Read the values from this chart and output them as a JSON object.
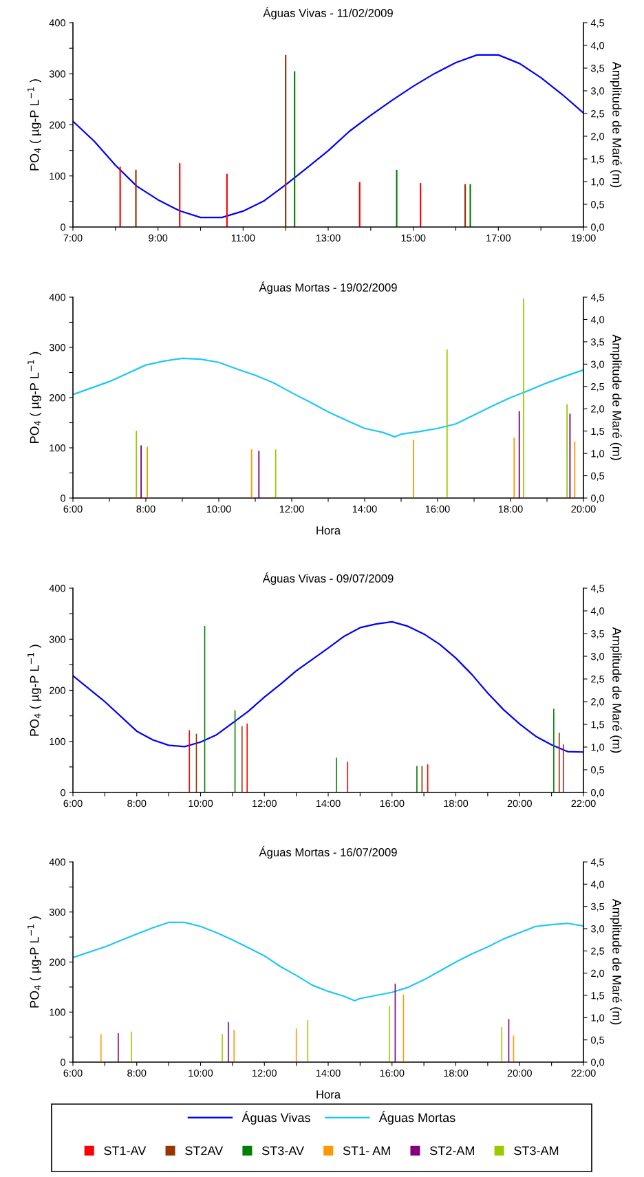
{
  "chart_data": [
    {
      "type": "bar",
      "title": "Águas Vivas - 11/02/2009",
      "ylabel": "PO$_{4}$ ( µg-P L$^{−1}$ )",
      "y2label": "Amplitude de Maré (m)",
      "legend": "bottom",
      "xlim": [
        7,
        19
      ],
      "xticks": [
        {
          "value": 7,
          "label": "7:00"
        },
        {
          "value": 8,
          "label": null
        },
        {
          "value": 9,
          "label": "9:00"
        },
        {
          "value": 10,
          "label": null
        },
        {
          "value": 11,
          "label": "11:00"
        },
        {
          "value": 12,
          "label": null
        },
        {
          "value": 13,
          "label": "13:00"
        },
        {
          "value": 14,
          "label": null
        },
        {
          "value": 15,
          "label": "15:00"
        },
        {
          "value": 16,
          "label": null
        },
        {
          "value": 17,
          "label": "17:00"
        },
        {
          "value": 18,
          "label": null
        },
        {
          "value": 19,
          "label": "19:00"
        }
      ],
      "ylim": [
        0,
        400
      ],
      "yticks": [
        0,
        {
          "value": 50,
          "label": null
        },
        100,
        {
          "value": 150,
          "label": null
        },
        200,
        {
          "value": 250,
          "label": null
        },
        300,
        {
          "value": 350,
          "label": null
        },
        400
      ],
      "y2lim": [
        0,
        4.5
      ],
      "y2ticks": [
        {
          "value": 0,
          "label": "0,0"
        },
        {
          "value": 0.5,
          "label": "0,5"
        },
        {
          "value": 1,
          "label": "1,0"
        },
        {
          "value": 1.5,
          "label": "1,5"
        },
        {
          "value": 2,
          "label": "2,0"
        },
        {
          "value": 2.5,
          "label": "2,5"
        },
        {
          "value": 3,
          "label": "3,0"
        },
        {
          "value": 3.5,
          "label": "3,5"
        },
        {
          "value": 4,
          "label": "4,0"
        },
        {
          "value": 4.5,
          "label": "4,5"
        }
      ],
      "series": [
        {
          "name": "Águas Vivas",
          "type": "line",
          "axis": "y2",
          "color": "#0000ff",
          "x": [
            7,
            7.5,
            8,
            8.5,
            9,
            9.5,
            10,
            10.5,
            11,
            11.5,
            12,
            12.5,
            13,
            13.5,
            14,
            14.5,
            15,
            15.5,
            16,
            16.5,
            17,
            17.5,
            18,
            18.5,
            19
          ],
          "values": [
            2.33,
            1.89,
            1.36,
            0.9,
            0.6,
            0.36,
            0.21,
            0.21,
            0.35,
            0.58,
            0.93,
            1.3,
            1.68,
            2.11,
            2.46,
            2.79,
            3.1,
            3.38,
            3.62,
            3.79,
            3.79,
            3.6,
            3.29,
            2.92,
            2.51
          ]
        },
        {
          "name": "ST1-AV",
          "color": "#ff0000",
          "x": [
            8.11,
            9.51,
            10.62,
            13.74,
            15.17
          ],
          "values": [
            118,
            125,
            104,
            88,
            86
          ]
        },
        {
          "name": "ST2AV",
          "color": "#993300",
          "x": [
            8.48,
            12.0,
            16.22
          ],
          "values": [
            112,
            337,
            84
          ]
        },
        {
          "name": "ST3-AV",
          "color": "#008000",
          "x": [
            12.21,
            14.61,
            16.34
          ],
          "values": [
            305,
            112,
            84
          ]
        }
      ]
    },
    {
      "type": "bar",
      "title": "Águas Mortas - 19/02/2009",
      "xlabel": "Hora",
      "ylabel": "PO$_{4}$ ( µg-P L$^{−1}$ )",
      "y2label": "Amplitude de Maré (m)",
      "legend": "bottom",
      "xlim": [
        6,
        20
      ],
      "xticks": [
        {
          "value": 6,
          "label": "6:00"
        },
        {
          "value": 7,
          "label": null
        },
        {
          "value": 8,
          "label": "8:00"
        },
        {
          "value": 9,
          "label": null
        },
        {
          "value": 10,
          "label": "10:00"
        },
        {
          "value": 11,
          "label": null
        },
        {
          "value": 12,
          "label": "12:00"
        },
        {
          "value": 13,
          "label": null
        },
        {
          "value": 14,
          "label": "14:00"
        },
        {
          "value": 15,
          "label": null
        },
        {
          "value": 16,
          "label": "16:00"
        },
        {
          "value": 17,
          "label": null
        },
        {
          "value": 18,
          "label": "18:00"
        },
        {
          "value": 19,
          "label": null
        },
        {
          "value": 20,
          "label": "20:00"
        }
      ],
      "ylim": [
        0,
        400
      ],
      "yticks": [
        0,
        {
          "value": 50,
          "label": null
        },
        100,
        {
          "value": 150,
          "label": null
        },
        200,
        {
          "value": 250,
          "label": null
        },
        300,
        {
          "value": 350,
          "label": null
        },
        400
      ],
      "y2lim": [
        0,
        4.5
      ],
      "y2ticks": [
        {
          "value": 0,
          "label": "0,0"
        },
        {
          "value": 0.5,
          "label": "0,5"
        },
        {
          "value": 1,
          "label": "1,0"
        },
        {
          "value": 1.5,
          "label": "1,5"
        },
        {
          "value": 2,
          "label": "2,0"
        },
        {
          "value": 2.5,
          "label": "2,5"
        },
        {
          "value": 3,
          "label": "3,0"
        },
        {
          "value": 3.5,
          "label": "3,5"
        },
        {
          "value": 4,
          "label": "4,0"
        },
        {
          "value": 4.5,
          "label": "4,5"
        }
      ],
      "series": [
        {
          "name": "Águas Mortas",
          "type": "line",
          "axis": "y2",
          "color": "#1ec8f5",
          "x": [
            6,
            7,
            8,
            8.5,
            9,
            9.5,
            10,
            10.5,
            11,
            11.5,
            12,
            12.5,
            13,
            13.5,
            14,
            14.5,
            14.83,
            15,
            15.5,
            16,
            16.5,
            17,
            17.5,
            18,
            18.5,
            19,
            19.5,
            20
          ],
          "values": [
            2.32,
            2.61,
            2.98,
            3.07,
            3.13,
            3.11,
            3.04,
            2.89,
            2.75,
            2.58,
            2.36,
            2.15,
            1.93,
            1.74,
            1.56,
            1.47,
            1.37,
            1.43,
            1.49,
            1.56,
            1.66,
            1.86,
            2.06,
            2.25,
            2.41,
            2.58,
            2.73,
            2.87
          ]
        },
        {
          "name": "ST1- AM",
          "color": "#ff9900",
          "x": [
            8.04,
            10.9,
            15.34,
            18.1,
            19.76
          ],
          "values": [
            102,
            97,
            116,
            120,
            113
          ]
        },
        {
          "name": "ST2-AM",
          "color": "#800080",
          "x": [
            7.87,
            11.1,
            18.24,
            19.63
          ],
          "values": [
            105,
            94,
            173,
            168
          ]
        },
        {
          "name": "ST3-AM",
          "color": "#99cc00",
          "x": [
            7.74,
            11.56,
            16.26,
            18.36,
            19.55
          ],
          "values": [
            134,
            97,
            296,
            397,
            187
          ]
        }
      ]
    },
    {
      "type": "bar",
      "title": "Águas Vivas - 09/07/2009",
      "ylabel": "PO$_{4}$ ( µg-P L$^{−1}$ )",
      "y2label": "Amplitude de Maré (m)",
      "legend": "bottom",
      "xlim": [
        6,
        22
      ],
      "xticks": [
        {
          "value": 6,
          "label": "6:00"
        },
        {
          "value": 7,
          "label": null
        },
        {
          "value": 8,
          "label": "8:00"
        },
        {
          "value": 9,
          "label": null
        },
        {
          "value": 10,
          "label": "10:00"
        },
        {
          "value": 11,
          "label": null
        },
        {
          "value": 12,
          "label": "12:00"
        },
        {
          "value": 13,
          "label": null
        },
        {
          "value": 14,
          "label": "14:00"
        },
        {
          "value": 15,
          "label": null
        },
        {
          "value": 16,
          "label": "16:00"
        },
        {
          "value": 17,
          "label": null
        },
        {
          "value": 18,
          "label": "18:00"
        },
        {
          "value": 19,
          "label": null
        },
        {
          "value": 20,
          "label": "20:00"
        },
        {
          "value": 21,
          "label": null
        },
        {
          "value": 22,
          "label": "22:00"
        }
      ],
      "ylim": [
        0,
        400
      ],
      "yticks": [
        0,
        {
          "value": 50,
          "label": null
        },
        100,
        {
          "value": 150,
          "label": null
        },
        200,
        {
          "value": 250,
          "label": null
        },
        300,
        {
          "value": 350,
          "label": null
        },
        400
      ],
      "y2lim": [
        0,
        4.5
      ],
      "y2ticks": [
        {
          "value": 0,
          "label": "0,0"
        },
        {
          "value": 0.5,
          "label": "0,5"
        },
        {
          "value": 1,
          "label": "1,0"
        },
        {
          "value": 1.5,
          "label": "1,5"
        },
        {
          "value": 2,
          "label": "2,0"
        },
        {
          "value": 2.5,
          "label": "2,5"
        },
        {
          "value": 3,
          "label": "3,0"
        },
        {
          "value": 3.5,
          "label": "3,5"
        },
        {
          "value": 4,
          "label": "4,0"
        },
        {
          "value": 4.5,
          "label": "4,5"
        }
      ],
      "series": [
        {
          "name": "Águas Vivas",
          "type": "line",
          "axis": "y2",
          "color": "#0000ff",
          "x": [
            6,
            7,
            8,
            8.5,
            9,
            9.5,
            10,
            10.5,
            11,
            11.5,
            12,
            12.5,
            13,
            13.5,
            14,
            14.5,
            15,
            15.5,
            16,
            16.5,
            17,
            17.5,
            18,
            18.5,
            19,
            19.5,
            20,
            20.5,
            21,
            21.5,
            22
          ],
          "values": [
            2.57,
            2.0,
            1.35,
            1.16,
            1.04,
            1.01,
            1.11,
            1.27,
            1.53,
            1.79,
            2.1,
            2.38,
            2.68,
            2.93,
            3.18,
            3.44,
            3.63,
            3.71,
            3.76,
            3.66,
            3.49,
            3.26,
            2.96,
            2.6,
            2.19,
            1.82,
            1.51,
            1.24,
            1.05,
            0.9,
            0.89
          ]
        },
        {
          "name": "ST1-AV",
          "color": "#ff0000",
          "x": [
            9.65,
            11.46,
            14.61,
            17.12,
            21.37
          ],
          "values": [
            122,
            135,
            60,
            55,
            94
          ]
        },
        {
          "name": "ST2AV",
          "color": "#993300",
          "x": [
            9.87,
            11.3,
            16.94,
            21.24
          ],
          "values": [
            115,
            130,
            52,
            117
          ]
        },
        {
          "name": "ST3-AV",
          "color": "#008000",
          "x": [
            10.13,
            11.08,
            14.26,
            16.78,
            21.07
          ],
          "values": [
            326,
            161,
            68,
            52,
            164
          ]
        }
      ]
    },
    {
      "type": "bar",
      "title": "Águas Mortas - 16/07/2009",
      "xlabel": "Hora",
      "ylabel": "PO$_{4}$ ( µg-P L$^{−1}$ )",
      "y2label": "Amplitude de Maré (m)",
      "legend": "bottom",
      "xlim": [
        6,
        22
      ],
      "xticks": [
        {
          "value": 6,
          "label": "6:00"
        },
        {
          "value": 7,
          "label": null
        },
        {
          "value": 8,
          "label": "8:00"
        },
        {
          "value": 9,
          "label": null
        },
        {
          "value": 10,
          "label": "10:00"
        },
        {
          "value": 11,
          "label": null
        },
        {
          "value": 12,
          "label": "12:00"
        },
        {
          "value": 13,
          "label": null
        },
        {
          "value": 14,
          "label": "14:00"
        },
        {
          "value": 15,
          "label": null
        },
        {
          "value": 16,
          "label": "16:00"
        },
        {
          "value": 17,
          "label": null
        },
        {
          "value": 18,
          "label": "18:00"
        },
        {
          "value": 19,
          "label": null
        },
        {
          "value": 20,
          "label": "20:00"
        },
        {
          "value": 21,
          "label": null
        },
        {
          "value": 22,
          "label": "22:00"
        }
      ],
      "ylim": [
        0,
        400
      ],
      "yticks": [
        0,
        {
          "value": 50,
          "label": null
        },
        100,
        {
          "value": 150,
          "label": null
        },
        200,
        {
          "value": 250,
          "label": null
        },
        300,
        {
          "value": 350,
          "label": null
        },
        400
      ],
      "y2lim": [
        0,
        4.5
      ],
      "y2ticks": [
        {
          "value": 0,
          "label": "0,0"
        },
        {
          "value": 0.5,
          "label": "0,5"
        },
        {
          "value": 1,
          "label": "1,0"
        },
        {
          "value": 1.5,
          "label": "1,5"
        },
        {
          "value": 2,
          "label": "2,0"
        },
        {
          "value": 2.5,
          "label": "2,5"
        },
        {
          "value": 3,
          "label": "3,0"
        },
        {
          "value": 3.5,
          "label": "3,5"
        },
        {
          "value": 4,
          "label": "4,0"
        },
        {
          "value": 4.5,
          "label": "4,5"
        }
      ],
      "series": [
        {
          "name": "Águas Mortas",
          "type": "line",
          "axis": "y2",
          "color": "#1ec8f5",
          "x": [
            6,
            7,
            8,
            8.5,
            9,
            9.5,
            10,
            10.5,
            11,
            11.5,
            12,
            12.5,
            13,
            13.5,
            14,
            14.5,
            14.83,
            15,
            15.5,
            16,
            16.5,
            17,
            17.5,
            18,
            18.5,
            19,
            19.5,
            20,
            20.5,
            21,
            21.5,
            22
          ],
          "values": [
            2.35,
            2.59,
            2.88,
            3.02,
            3.14,
            3.14,
            3.05,
            2.91,
            2.75,
            2.57,
            2.39,
            2.15,
            1.95,
            1.73,
            1.59,
            1.48,
            1.38,
            1.43,
            1.5,
            1.57,
            1.68,
            1.85,
            2.05,
            2.25,
            2.43,
            2.59,
            2.77,
            2.91,
            3.05,
            3.09,
            3.12,
            3.06
          ]
        },
        {
          "name": "ST1- AM",
          "color": "#ff9900",
          "x": [
            6.88,
            11.05,
            13.0,
            16.36,
            19.81
          ],
          "values": [
            56,
            64,
            67,
            135,
            53
          ]
        },
        {
          "name": "ST2-AM",
          "color": "#800080",
          "x": [
            7.42,
            10.87,
            16.1,
            19.66
          ],
          "values": [
            58,
            80,
            157,
            86
          ]
        },
        {
          "name": "ST3-AM",
          "color": "#99cc00",
          "x": [
            7.83,
            10.68,
            13.36,
            15.92,
            19.44
          ],
          "values": [
            61,
            56,
            84,
            112,
            70
          ]
        }
      ]
    }
  ]
}
